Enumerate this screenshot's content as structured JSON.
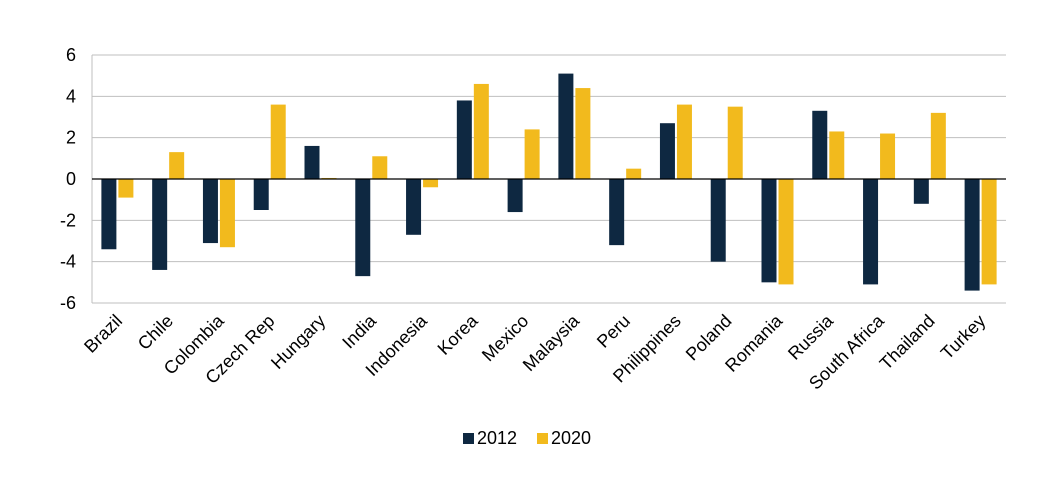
{
  "chart_data": {
    "type": "bar",
    "title": "",
    "xlabel": "",
    "ylabel": "",
    "ylim": [
      -6,
      6
    ],
    "yticks": [
      6,
      4,
      2,
      0,
      -2,
      -4,
      -6
    ],
    "grid": true,
    "legend_position": "bottom",
    "categories": [
      "Brazil",
      "Chile",
      "Colombia",
      "Czech Rep",
      "Hungary",
      "India",
      "Indonesia",
      "Korea",
      "Mexico",
      "Malaysia",
      "Peru",
      "Philippines",
      "Poland",
      "Romania",
      "Russia",
      "South Africa",
      "Thailand",
      "Turkey"
    ],
    "series": [
      {
        "name": "2012",
        "color": "#0e2841",
        "values": [
          -3.4,
          -4.4,
          -3.1,
          -1.5,
          1.6,
          -4.7,
          -2.7,
          3.8,
          -1.6,
          5.1,
          -3.2,
          2.7,
          -4.0,
          -5.0,
          3.3,
          -5.1,
          -1.2,
          -5.4
        ]
      },
      {
        "name": "2020",
        "color": "#f2ba1d",
        "values": [
          -0.9,
          1.3,
          -3.3,
          3.6,
          0.05,
          1.1,
          -0.4,
          4.6,
          2.4,
          4.4,
          0.5,
          3.6,
          3.5,
          -5.1,
          2.3,
          2.2,
          3.2,
          -5.1
        ]
      }
    ]
  }
}
